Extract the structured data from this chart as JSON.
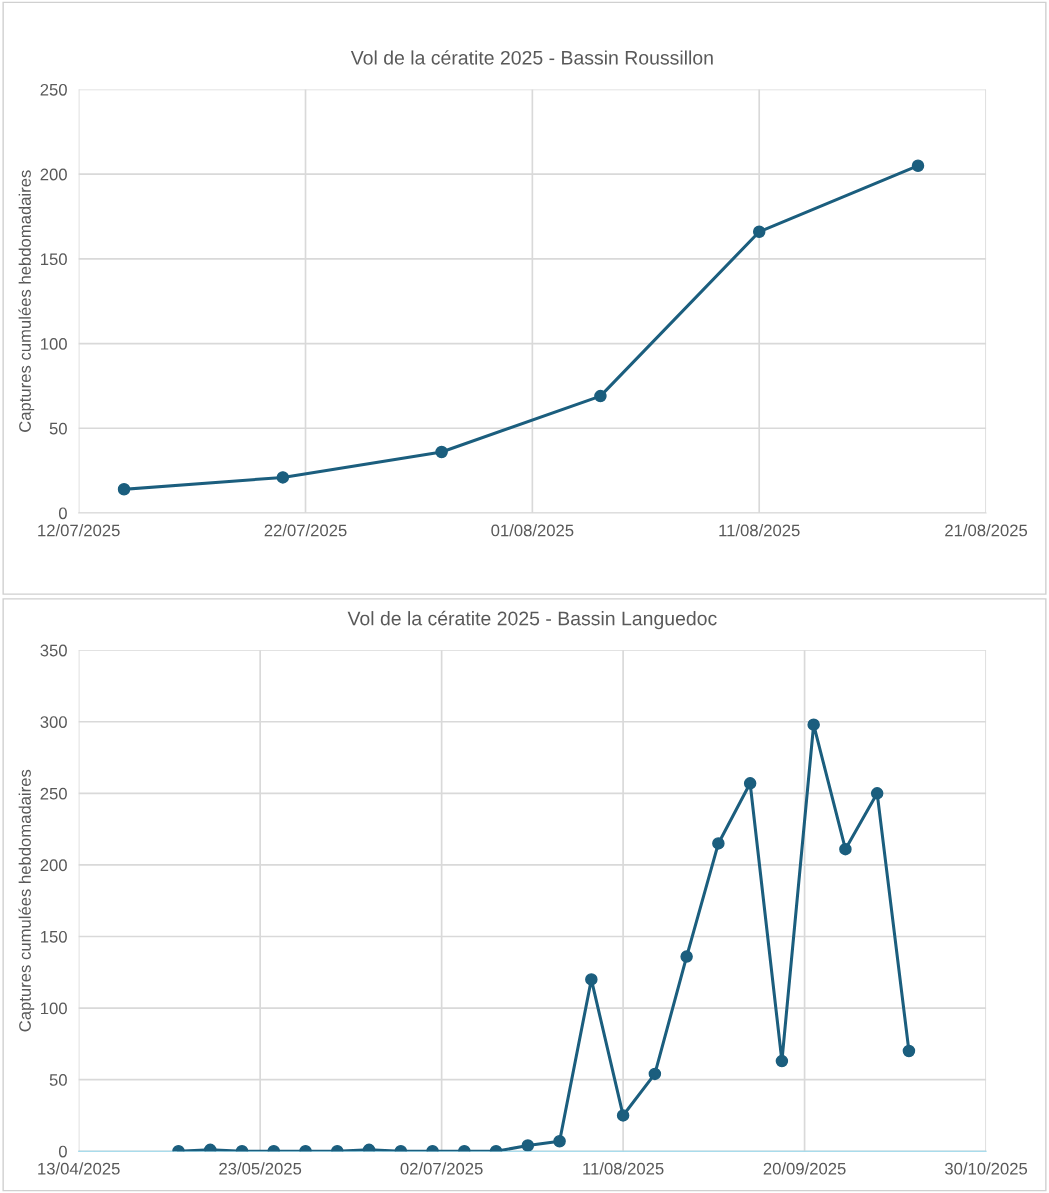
{
  "chart_data": [
    {
      "type": "line",
      "title": "Vol de la cératite 2025 - Bassin Roussillon",
      "ylabel": "Captures cumulées hebdomadaires",
      "x": [
        "2025-07-14",
        "2025-07-21",
        "2025-07-28",
        "2025-08-04",
        "2025-08-11",
        "2025-08-18"
      ],
      "series": [
        {
          "color": "#1b5e7e",
          "values": [
            14,
            21,
            36,
            69,
            166,
            205
          ]
        }
      ],
      "xlim": [
        "2025-07-12",
        "2025-08-21"
      ],
      "xticks": [
        {
          "value": "2025-07-12",
          "label": "12/07/2025"
        },
        {
          "value": "2025-07-22",
          "label": "22/07/2025"
        },
        {
          "value": "2025-08-01",
          "label": "01/08/2025"
        },
        {
          "value": "2025-08-11",
          "label": "11/08/2025"
        },
        {
          "value": "2025-08-21",
          "label": "21/08/2025"
        }
      ],
      "ylim": [
        0,
        250
      ],
      "yticks": [
        0,
        50,
        100,
        150,
        200,
        250
      ],
      "grid": true,
      "marker": "circle",
      "line_style": "solid",
      "legend": false
    },
    {
      "type": "line",
      "title": "Vol de la cératite 2025 - Bassin Languedoc",
      "ylabel": "Captures cumulées hebdomadaires",
      "x": [
        "2025-05-05",
        "2025-05-12",
        "2025-05-19",
        "2025-05-26",
        "2025-06-02",
        "2025-06-09",
        "2025-06-16",
        "2025-06-23",
        "2025-06-30",
        "2025-07-07",
        "2025-07-14",
        "2025-07-21",
        "2025-07-28",
        "2025-08-04",
        "2025-08-11",
        "2025-08-18",
        "2025-08-25",
        "2025-09-01",
        "2025-09-08",
        "2025-09-15",
        "2025-09-22",
        "2025-09-29",
        "2025-10-06",
        "2025-10-13"
      ],
      "series": [
        {
          "color": "#1b5e7e",
          "values": [
            0,
            1,
            0,
            0,
            0,
            0,
            1,
            0,
            0,
            0,
            0,
            4,
            7,
            120,
            25,
            54,
            136,
            215,
            257,
            63,
            298,
            211,
            250,
            70
          ]
        }
      ],
      "xlim": [
        "2025-04-13",
        "2025-10-30"
      ],
      "xticks": [
        {
          "value": "2025-04-13",
          "label": "13/04/2025"
        },
        {
          "value": "2025-05-23",
          "label": "23/05/2025"
        },
        {
          "value": "2025-07-02",
          "label": "02/07/2025"
        },
        {
          "value": "2025-08-11",
          "label": "11/08/2025"
        },
        {
          "value": "2025-09-20",
          "label": "20/09/2025"
        },
        {
          "value": "2025-10-30",
          "label": "30/10/2025"
        }
      ],
      "ylim": [
        0,
        350
      ],
      "yticks": [
        0,
        50,
        100,
        150,
        200,
        250,
        300,
        350
      ],
      "grid": true,
      "marker": "circle",
      "line_style": "solid",
      "legend": false
    }
  ]
}
